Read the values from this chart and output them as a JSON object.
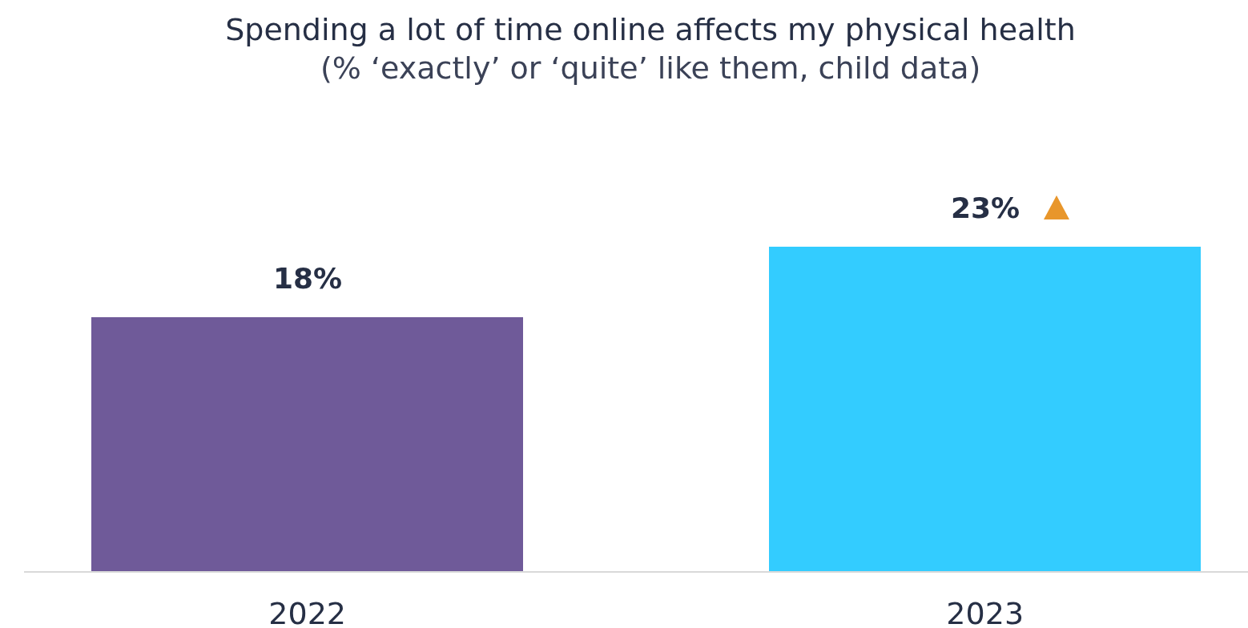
{
  "chart_data": {
    "type": "bar",
    "title": "Spending a lot of time online affects my physical health",
    "subtitle": "(% ‘exactly’ or ‘quite’ like them, child data)",
    "categories": [
      "2022",
      "2023"
    ],
    "values": [
      18,
      23
    ],
    "colors": [
      "#6f5a99",
      "#33ccff"
    ],
    "value_labels": [
      "18%",
      "23%"
    ],
    "tick_labels": "x",
    "grid": false
  }
}
